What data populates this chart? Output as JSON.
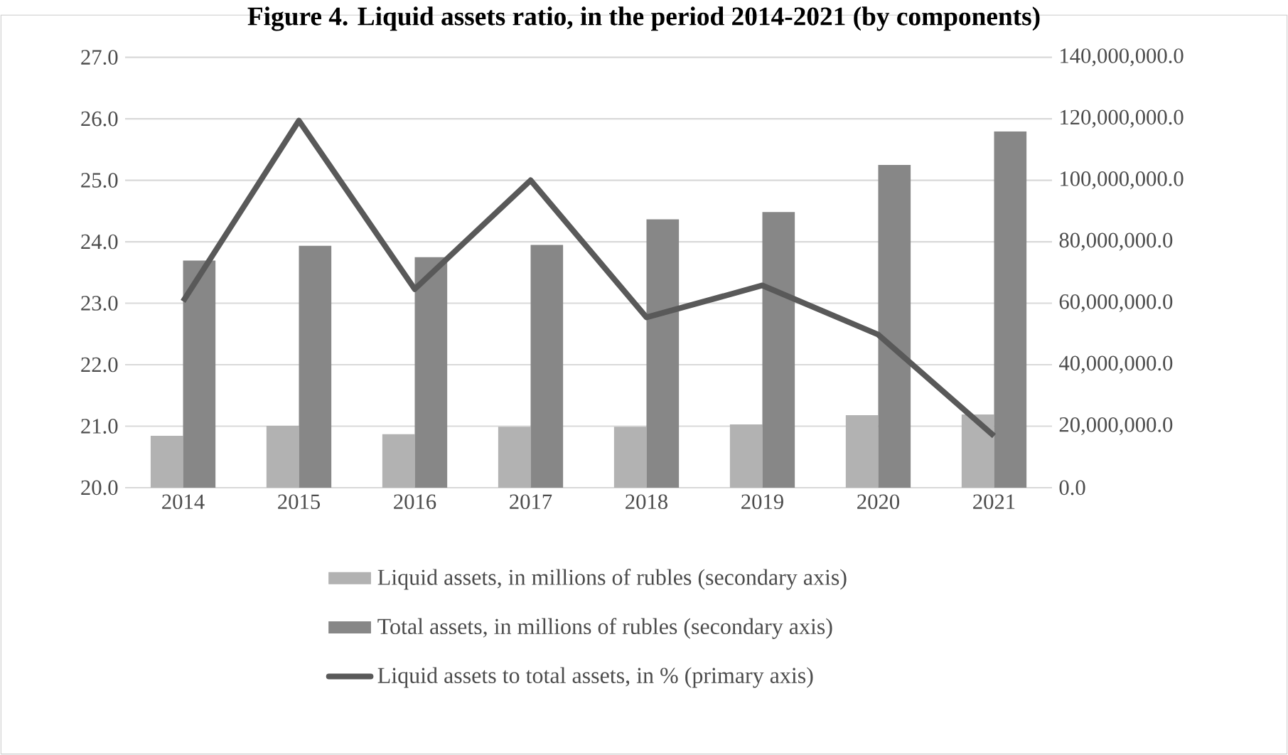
{
  "chart_data": {
    "type": "bar",
    "title": "Figure 4. Liquid assets ratio, in the period 2014-2021 (by components)",
    "categories": [
      "2014",
      "2015",
      "2016",
      "2017",
      "2018",
      "2019",
      "2020",
      "2021"
    ],
    "series": [
      {
        "name": "Liquid assets, in millions of rubles (secondary axis)",
        "axis": "y2",
        "color": "#b2b2b2",
        "values": [
          16900000,
          20100000,
          17400000,
          19800000,
          19800000,
          20600000,
          23600000,
          23800000
        ]
      },
      {
        "name": "Total assets, in millions of rubles (secondary axis)",
        "axis": "y2",
        "color": "#878787",
        "values": [
          73900000,
          78700000,
          75000000,
          79000000,
          87300000,
          89700000,
          105000000,
          115900000
        ]
      },
      {
        "name": "Liquid assets to total assets, in % (primary axis)",
        "type": "line",
        "axis": "y",
        "color": "#595959",
        "values": [
          23.03,
          25.97,
          23.23,
          25.0,
          22.77,
          23.29,
          22.49,
          20.84
        ]
      }
    ],
    "ylim": [
      20,
      27
    ],
    "yticks": [
      {
        "value": 20,
        "label": "20.0"
      },
      {
        "value": 21,
        "label": "21.0"
      },
      {
        "value": 22,
        "label": "22.0"
      },
      {
        "value": 23,
        "label": "23.0"
      },
      {
        "value": 24,
        "label": "24.0"
      },
      {
        "value": 25,
        "label": "25.0"
      },
      {
        "value": 26,
        "label": "26.0"
      },
      {
        "value": 27,
        "label": "27.0"
      }
    ],
    "y2lim": [
      0,
      140000000
    ],
    "y2ticks": [
      {
        "value": 0,
        "label": "0.0"
      },
      {
        "value": 20000000,
        "label": "20,000,000.0"
      },
      {
        "value": 40000000,
        "label": "40,000,000.0"
      },
      {
        "value": 60000000,
        "label": "60,000,000.0"
      },
      {
        "value": 80000000,
        "label": "80,000,000.0"
      },
      {
        "value": 100000000,
        "label": "100,000,000.0"
      },
      {
        "value": 120000000,
        "label": "120,000,000.0"
      },
      {
        "value": 140000000,
        "label": "140,000,000.0"
      }
    ],
    "grid": "y",
    "legend": "bottom",
    "marker": "none",
    "line_style": "solid"
  }
}
